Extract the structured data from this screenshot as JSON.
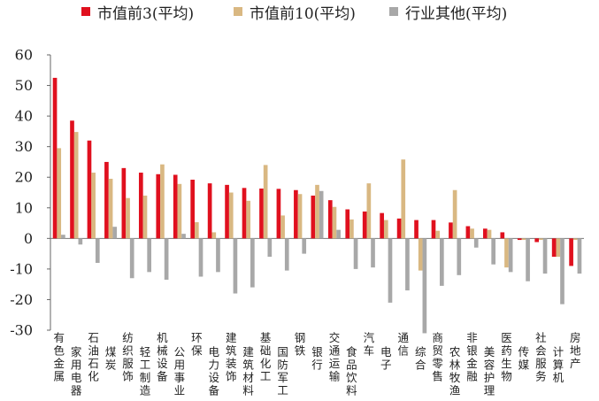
{
  "chart_data": {
    "type": "bar",
    "ylim": [
      -30,
      60
    ],
    "yticks": [
      -30,
      -20,
      -10,
      0,
      10,
      20,
      30,
      40,
      50,
      60
    ],
    "grid": false,
    "legend_position": "top",
    "categories": [
      "有色金属",
      "家用电器",
      "石油石化",
      "煤炭",
      "纺织服饰",
      "轻工制造",
      "机械设备",
      "公用事业",
      "环保",
      "电力设备",
      "建筑装饰",
      "建筑材料",
      "基础化工",
      "国防军工",
      "钢铁",
      "银行",
      "交通运输",
      "食品饮料",
      "汽车",
      "电子",
      "通信",
      "综合",
      "商贸零售",
      "农林牧渔",
      "非银金融",
      "美容护理",
      "医药生物",
      "传媒",
      "社会服务",
      "计算机",
      "房地产"
    ],
    "series": [
      {
        "name": "市值前3(平均)",
        "color": "#e0101e",
        "values": [
          52.5,
          38.5,
          32,
          25,
          23,
          21.5,
          21,
          20.8,
          19.2,
          18,
          17.5,
          16.5,
          16.3,
          16.2,
          15.8,
          14,
          12.5,
          9.5,
          8.8,
          8.3,
          6.5,
          6,
          6,
          5.2,
          4,
          3.2,
          2,
          -0.5,
          -1.2,
          -6,
          -9
        ]
      },
      {
        "name": "市值前10(平均)",
        "color": "#d9b882",
        "values": [
          29.5,
          34.8,
          21.5,
          19.5,
          13.2,
          14,
          24.2,
          17.8,
          5.3,
          2,
          15,
          12.3,
          24,
          7.5,
          14.5,
          17.5,
          10.3,
          6.2,
          18,
          6,
          25.8,
          -10.5,
          2.5,
          15.8,
          3.2,
          2.8,
          -9.5,
          -0.5,
          -0.5,
          -6,
          -0.5
        ]
      },
      {
        "name": "行业其他(平均)",
        "color": "#a8a8a8",
        "values": [
          1.2,
          -2,
          -8,
          3.8,
          -13,
          -11,
          -13.5,
          1.5,
          -12.5,
          -11,
          -18,
          -16,
          -6,
          -10.5,
          -5,
          15.5,
          2.8,
          -10,
          -9.5,
          -21,
          -17,
          -31,
          -15.5,
          -12,
          -3,
          -8.5,
          -11,
          -14,
          -11.5,
          -21.5,
          -11.5
        ]
      }
    ]
  }
}
